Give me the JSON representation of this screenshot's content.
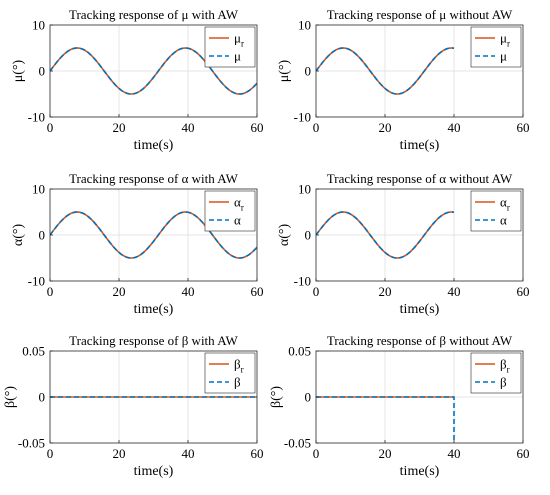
{
  "colors": {
    "reference": "#d95319",
    "response": "#0072bd"
  },
  "chart_data": [
    {
      "type": "line",
      "title": "Tracking response of μ with AW",
      "xlabel": "time(s)",
      "ylabel": "μ(°)",
      "xlim": [
        0,
        60
      ],
      "ylim": [
        -10,
        10
      ],
      "xticks": [
        "0",
        "20",
        "40",
        "60"
      ],
      "yticks": [
        "10",
        "0",
        "-10"
      ],
      "grid": true,
      "legend": "top-right",
      "series": [
        {
          "name": "μ",
          "sub": "r",
          "style": "solid",
          "fn": "sin",
          "amplitude": 5,
          "period": 31.4,
          "t_end": 60
        },
        {
          "name": "μ",
          "sub": "",
          "style": "dashed",
          "fn": "sin",
          "amplitude": 5,
          "period": 31.4,
          "t_end": 60
        }
      ]
    },
    {
      "type": "line",
      "title": "Tracking response of μ without AW",
      "xlabel": "time(s)",
      "ylabel": "μ(°)",
      "xlim": [
        0,
        60
      ],
      "ylim": [
        -10,
        10
      ],
      "xticks": [
        "0",
        "20",
        "40",
        "60"
      ],
      "yticks": [
        "10",
        "0",
        "-10"
      ],
      "grid": true,
      "legend": "top-right",
      "series": [
        {
          "name": "μ",
          "sub": "r",
          "style": "solid",
          "fn": "sin",
          "amplitude": 5,
          "period": 31.4,
          "t_end": 40
        },
        {
          "name": "μ",
          "sub": "",
          "style": "dashed",
          "fn": "sin",
          "amplitude": 5,
          "period": 31.4,
          "t_end": 40
        }
      ]
    },
    {
      "type": "line",
      "title": "Tracking response of α with AW",
      "xlabel": "time(s)",
      "ylabel": "α(°)",
      "xlim": [
        0,
        60
      ],
      "ylim": [
        -10,
        10
      ],
      "xticks": [
        "0",
        "20",
        "40",
        "60"
      ],
      "yticks": [
        "10",
        "0",
        "-10"
      ],
      "grid": true,
      "legend": "top-right",
      "series": [
        {
          "name": "α",
          "sub": "r",
          "style": "solid",
          "fn": "sin",
          "amplitude": 5,
          "period": 31.4,
          "t_end": 60
        },
        {
          "name": "α",
          "sub": "",
          "style": "dashed",
          "fn": "sin",
          "amplitude": 5,
          "period": 31.4,
          "t_end": 60
        }
      ]
    },
    {
      "type": "line",
      "title": "Tracking response of α without AW",
      "xlabel": "time(s)",
      "ylabel": "α(°)",
      "xlim": [
        0,
        60
      ],
      "ylim": [
        -10,
        10
      ],
      "xticks": [
        "0",
        "20",
        "40",
        "60"
      ],
      "yticks": [
        "10",
        "0",
        "-10"
      ],
      "grid": true,
      "legend": "top-right",
      "series": [
        {
          "name": "α",
          "sub": "r",
          "style": "solid",
          "fn": "sin",
          "amplitude": 5,
          "period": 31.4,
          "t_end": 40
        },
        {
          "name": "α",
          "sub": "",
          "style": "dashed",
          "fn": "sin",
          "amplitude": 5,
          "period": 31.4,
          "t_end": 40
        }
      ]
    },
    {
      "type": "line",
      "title": "Tracking response of β with AW",
      "xlabel": "time(s)",
      "ylabel": "β(°)",
      "xlim": [
        0,
        60
      ],
      "ylim": [
        -0.05,
        0.05
      ],
      "xticks": [
        "0",
        "20",
        "40",
        "60"
      ],
      "yticks": [
        "0.05",
        "0",
        "-0.05"
      ],
      "grid": true,
      "legend": "top-right",
      "series": [
        {
          "name": "β",
          "sub": "r",
          "style": "solid",
          "fn": "const",
          "value": 0,
          "t_end": 60
        },
        {
          "name": "β",
          "sub": "",
          "style": "dashed",
          "fn": "const",
          "value": 0,
          "t_end": 60
        }
      ]
    },
    {
      "type": "line",
      "title": "Tracking response of β without AW",
      "xlabel": "time(s)",
      "ylabel": "β(°)",
      "xlim": [
        0,
        60
      ],
      "ylim": [
        -0.05,
        0.05
      ],
      "xticks": [
        "0",
        "20",
        "40",
        "60"
      ],
      "yticks": [
        "0.05",
        "0",
        "-0.05"
      ],
      "grid": true,
      "legend": "top-right",
      "series": [
        {
          "name": "β",
          "sub": "r",
          "style": "solid",
          "fn": "const",
          "value": 0,
          "t_end": 40
        },
        {
          "name": "β",
          "sub": "",
          "style": "dashed",
          "fn": "const",
          "value": 0,
          "t_end": 40,
          "drop_to": -0.05
        }
      ]
    }
  ]
}
